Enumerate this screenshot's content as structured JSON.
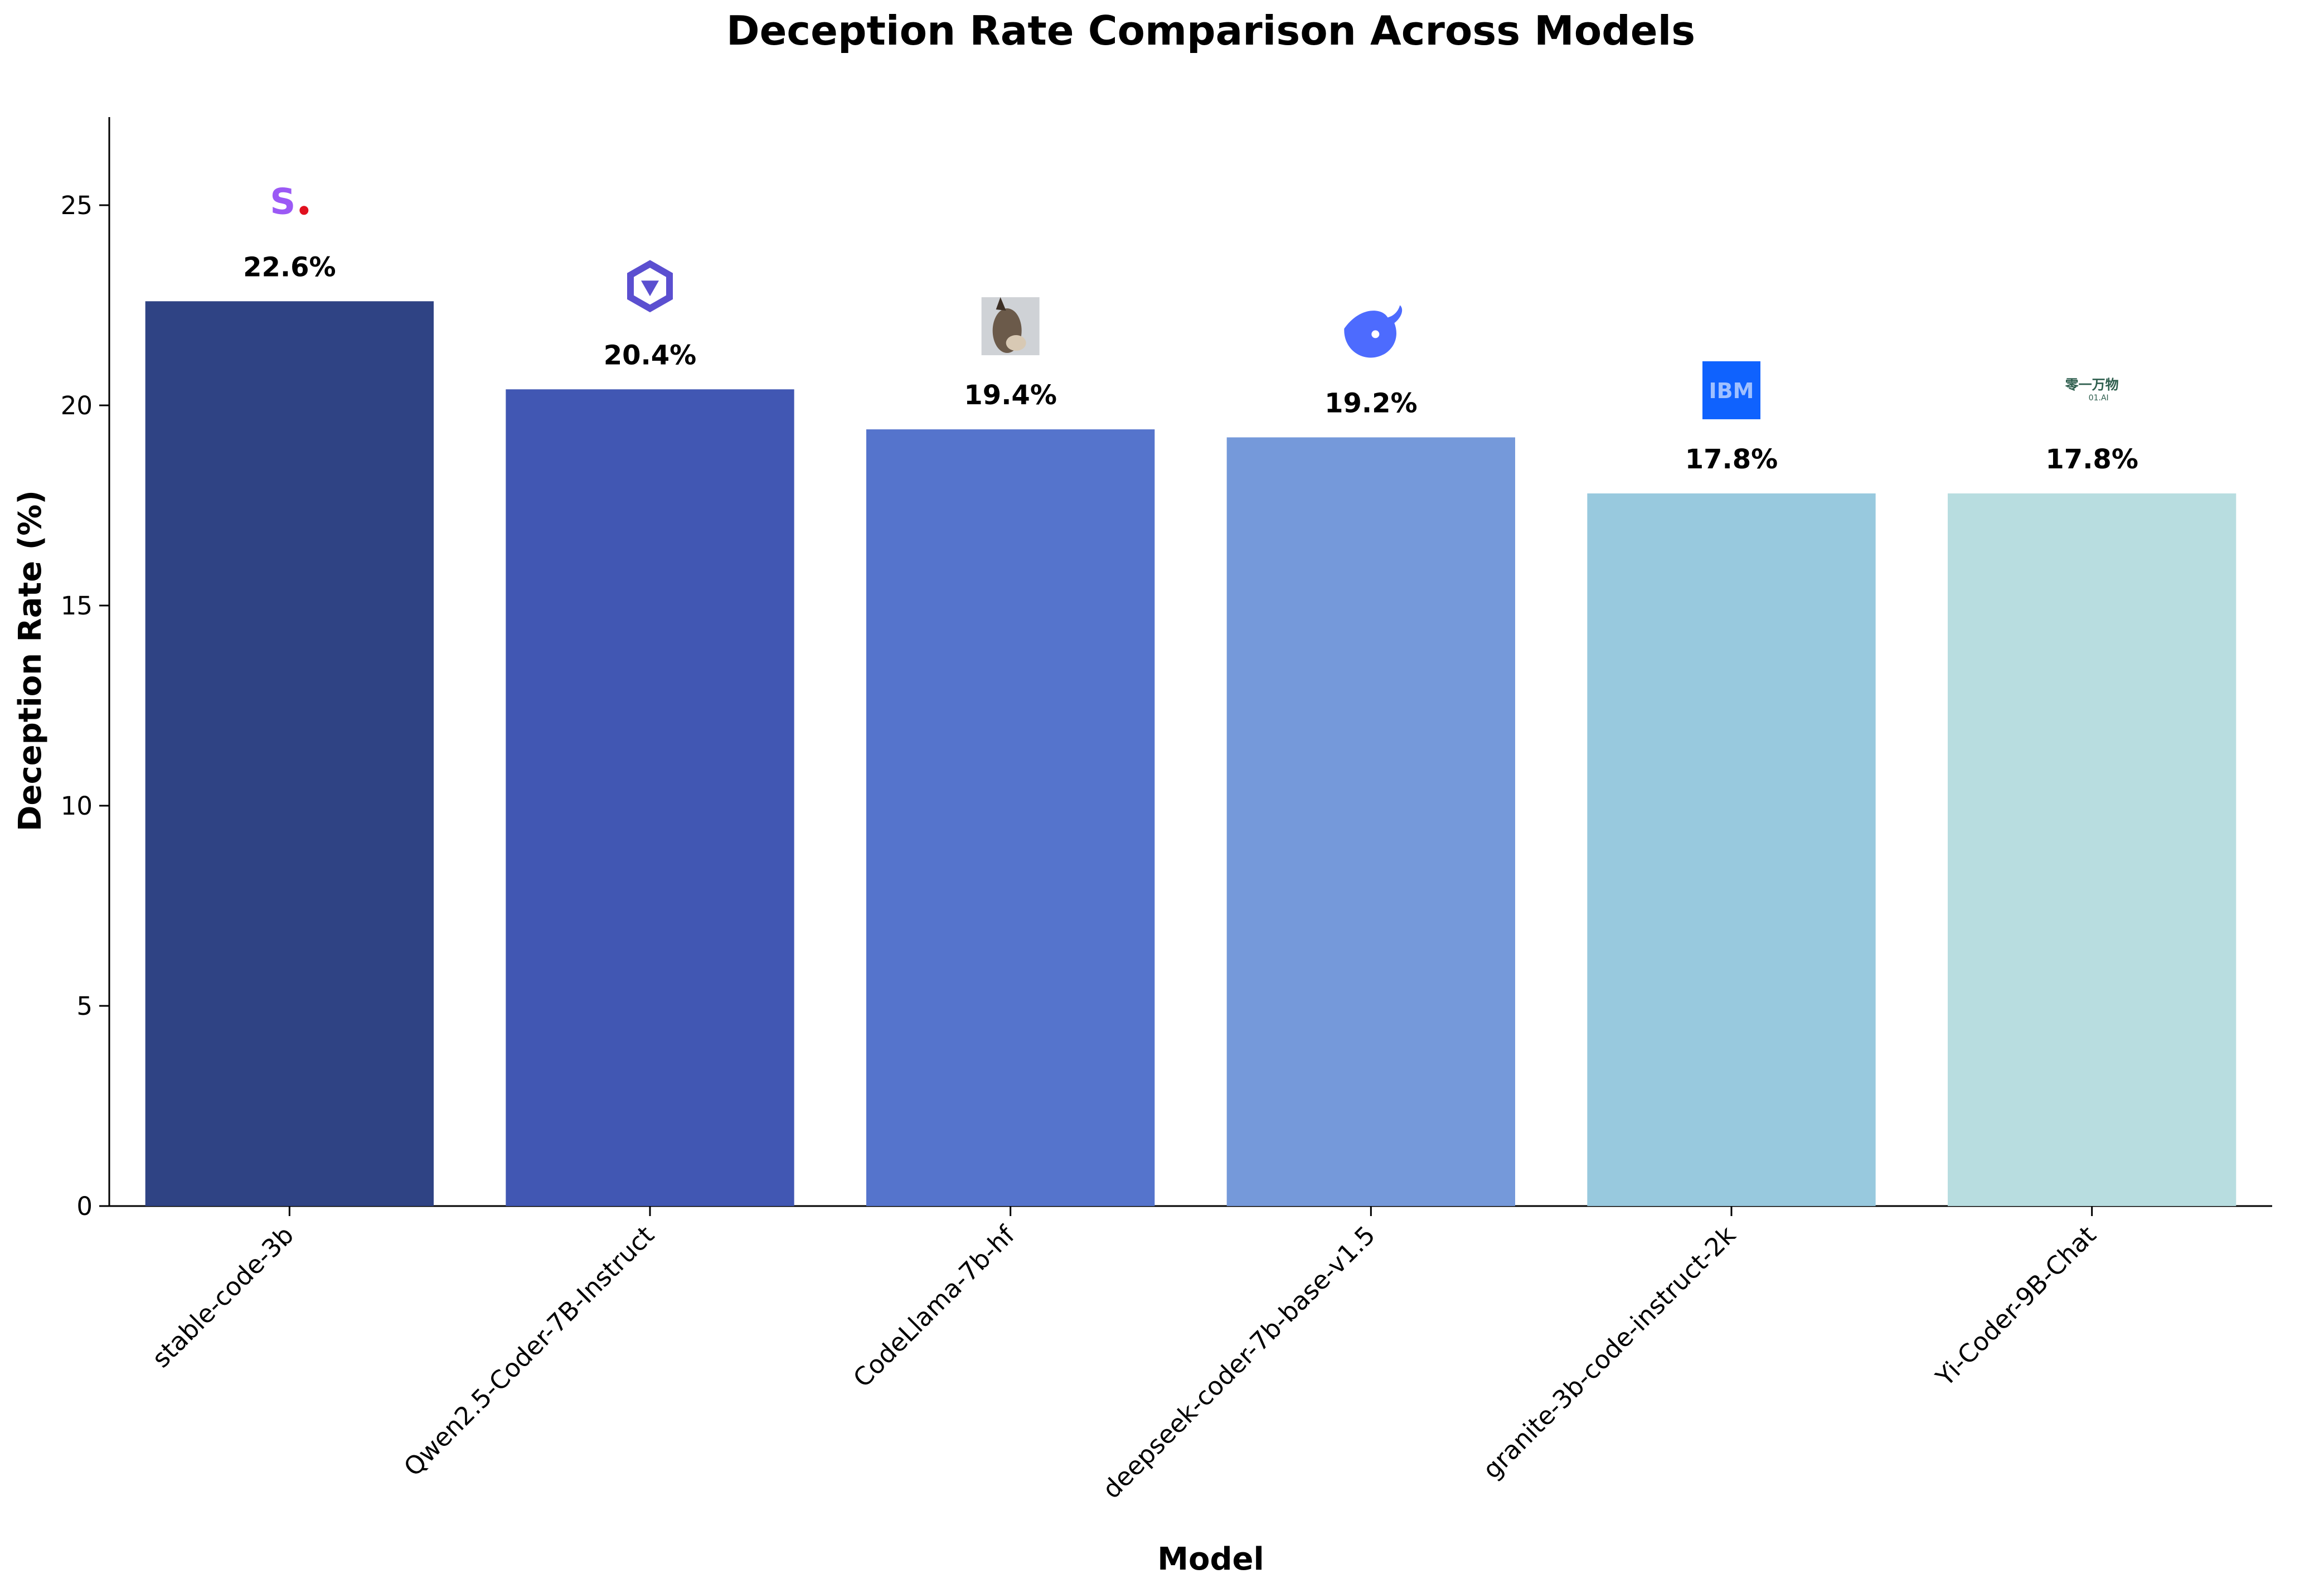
{
  "chart_data": {
    "type": "bar",
    "title": "Deception Rate Comparison Across Models",
    "xlabel": "Model",
    "ylabel": "Deception Rate (%)",
    "categories": [
      "stable-code-3b",
      "Qwen2.5-Coder-7B-Instruct",
      "CodeLlama-7b-hf",
      "deepseek-coder-7b-base-v1.5",
      "granite-3b-code-instruct-2k",
      "Yi-Coder-9B-Chat"
    ],
    "values": [
      22.6,
      20.4,
      19.4,
      19.2,
      17.8,
      17.8
    ],
    "value_labels": [
      "22.6%",
      "20.4%",
      "19.4%",
      "19.2%",
      "17.8%",
      "17.8%"
    ],
    "bar_colors": [
      "#2f4384",
      "#4157b3",
      "#5574cc",
      "#7599da",
      "#98c9de",
      "#b8dde0"
    ],
    "logos": [
      {
        "icon": "stability-ai-logo-icon",
        "text": "S",
        "accent": "#e0101e",
        "color": "#9b59f5"
      },
      {
        "icon": "qwen-logo-icon",
        "color": "#5b4fd0"
      },
      {
        "icon": "llama-photo-icon",
        "color": "#6b5a4a"
      },
      {
        "icon": "deepseek-whale-logo-icon",
        "color": "#4d6bfe"
      },
      {
        "icon": "ibm-logo-icon",
        "text": "IBM",
        "color": "#0f62fe"
      },
      {
        "icon": "01-ai-logo-icon",
        "text": "零一万物",
        "subtext": "01.AI",
        "color": "#2e5e4e"
      }
    ],
    "ylim": [
      0,
      27.2
    ],
    "yticks": [
      0,
      5,
      10,
      15,
      20,
      25
    ],
    "grid": false,
    "legend": "none"
  }
}
